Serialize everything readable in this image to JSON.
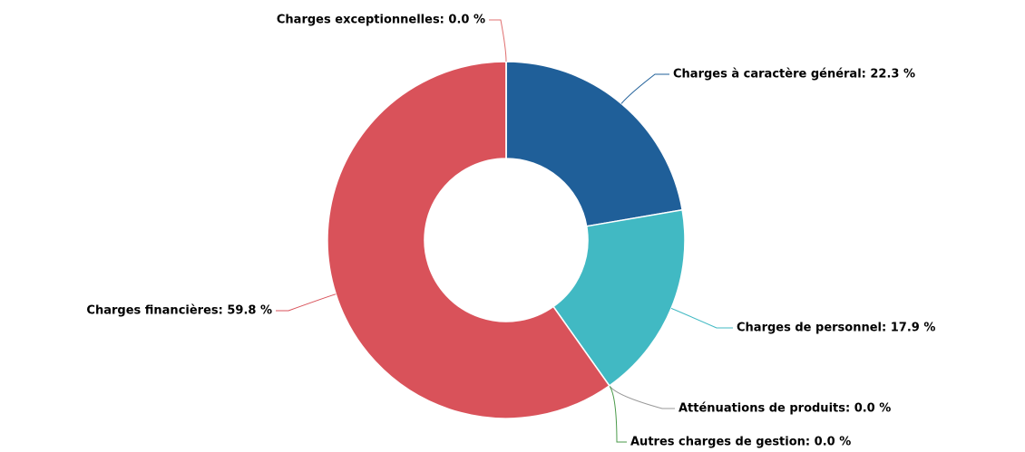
{
  "chart_data": {
    "type": "donut",
    "categories": [
      "Charges à caractère général",
      "Charges de personnel",
      "Atténuations de produits",
      "Autres charges de gestion",
      "Charges financières",
      "Charges exceptionnelles"
    ],
    "values": [
      22.3,
      17.9,
      0.0,
      0.0,
      59.8,
      0.0
    ],
    "value_labels": [
      "Charges à caractère général: 22.3 %",
      "Charges de personnel: 17.9 %",
      "Atténuations de produits: 0.0 %",
      "Autres charges de gestion: 0.0 %",
      "Charges financières: 59.8 %",
      "Charges exceptionnelles: 0.0 %"
    ],
    "colors": [
      "#1f5f99",
      "#41b9c3",
      "#999999",
      "#4a9a4a",
      "#d9525a",
      "#e07070"
    ]
  }
}
